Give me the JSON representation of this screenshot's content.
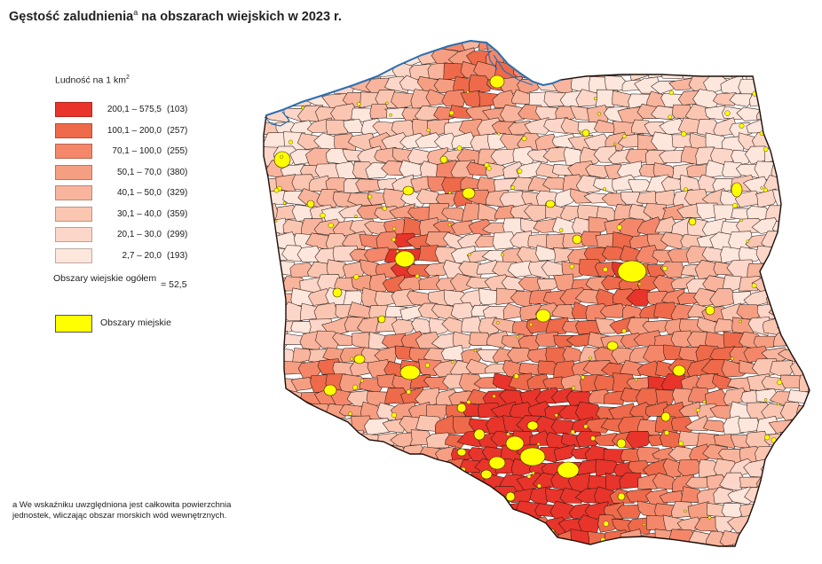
{
  "title": {
    "main": "Gęstość zaludnienia",
    "superscript": "a",
    "rest": " na obszarach wiejskich w 2023 r."
  },
  "legend": {
    "title": "Ludność na 1 km",
    "title_sup": "2",
    "classes": [
      {
        "range": "200,1 – 575,5",
        "count": "(103)",
        "color": "#e8342a"
      },
      {
        "range": "100,1 – 200,0",
        "count": "(257)",
        "color": "#ee6a4a"
      },
      {
        "range": "70,1 – 100,0",
        "count": "(255)",
        "color": "#f4876a"
      },
      {
        "range": "50,1 – 70,0",
        "count": "(380)",
        "color": "#f69e82"
      },
      {
        "range": "40,1 – 50,0",
        "count": "(329)",
        "color": "#f8b49c"
      },
      {
        "range": "30,1 – 40,0",
        "count": "(359)",
        "color": "#fac6b2"
      },
      {
        "range": "20,1 – 30,0",
        "count": "(299)",
        "color": "#fcd6c8"
      },
      {
        "range": "2,7 – 20,0",
        "count": "(193)",
        "color": "#fde6dc"
      }
    ],
    "total_label": "Obszary wiejskie ogółem",
    "total_value": "= 52,5",
    "urban_label": "Obszary miejskie",
    "urban_color": "#ffff00"
  },
  "footnote": "a We wskaźniku uwzględniona jest całkowita powierzchnia jednostek, wliczając obszar morskich wód wewnętrznych.",
  "colors": {
    "border": "#2b1a14",
    "water": "#2a6fb0",
    "urban": "#ffff00"
  }
}
